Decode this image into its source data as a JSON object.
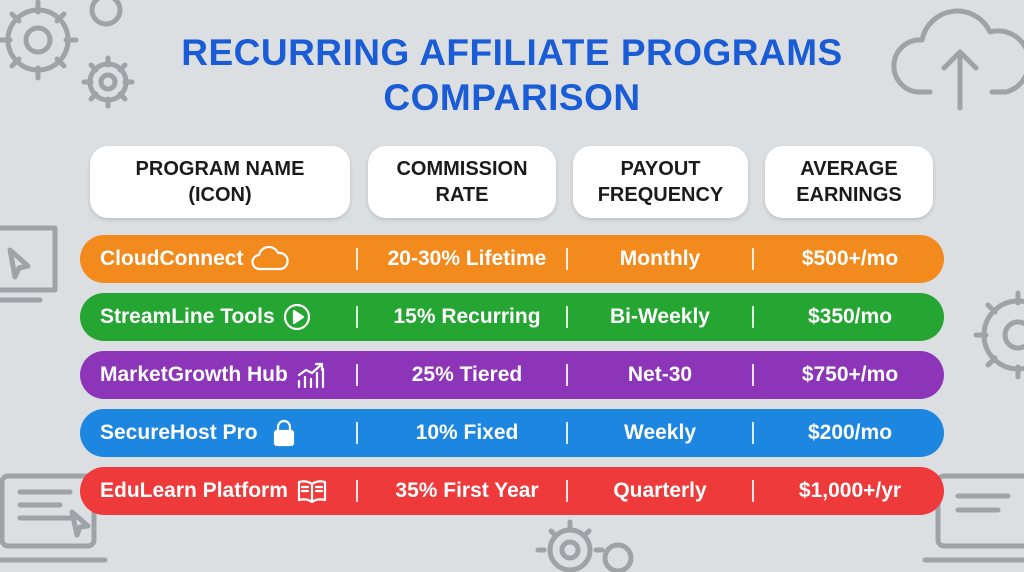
{
  "title": {
    "line1": "RECURRING AFFILIATE PROGRAMS",
    "line2": "COMPARISON"
  },
  "headers": [
    {
      "line1": "PROGRAM NAME",
      "line2": "(ICON)"
    },
    {
      "line1": "COMMISSION",
      "line2": "RATE"
    },
    {
      "line1": "PAYOUT",
      "line2": "FREQUENCY"
    },
    {
      "line1": "AVERAGE",
      "line2": "EARNINGS"
    }
  ],
  "rows": [
    {
      "name": "CloudConnect",
      "icon": "cloud-icon",
      "rate": "20-30% Lifetime",
      "frequency": "Monthly",
      "earnings": "$500+/mo",
      "color": "#f28a1e"
    },
    {
      "name": "StreamLine Tools",
      "icon": "play-icon",
      "rate": "15% Recurring",
      "frequency": "Bi-Weekly",
      "earnings": "$350/mo",
      "color": "#25a532"
    },
    {
      "name": "MarketGrowth Hub",
      "icon": "growth-chart-icon",
      "rate": "25% Tiered",
      "frequency": "Net-30",
      "earnings": "$750+/mo",
      "color": "#8c35b8"
    },
    {
      "name": "SecureHost Pro",
      "icon": "lock-icon",
      "rate": "10% Fixed",
      "frequency": "Weekly",
      "earnings": "$200/mo",
      "color": "#1d86e0"
    },
    {
      "name": "EduLearn Platform",
      "icon": "book-icon",
      "rate": "35% First Year",
      "frequency": "Quarterly",
      "earnings": "$1,000+/yr",
      "color": "#ee3a3a"
    }
  ],
  "background_icons": [
    "gear-icon",
    "cloud-upload-icon",
    "monitor-cursor-icon",
    "laptop-icon"
  ]
}
